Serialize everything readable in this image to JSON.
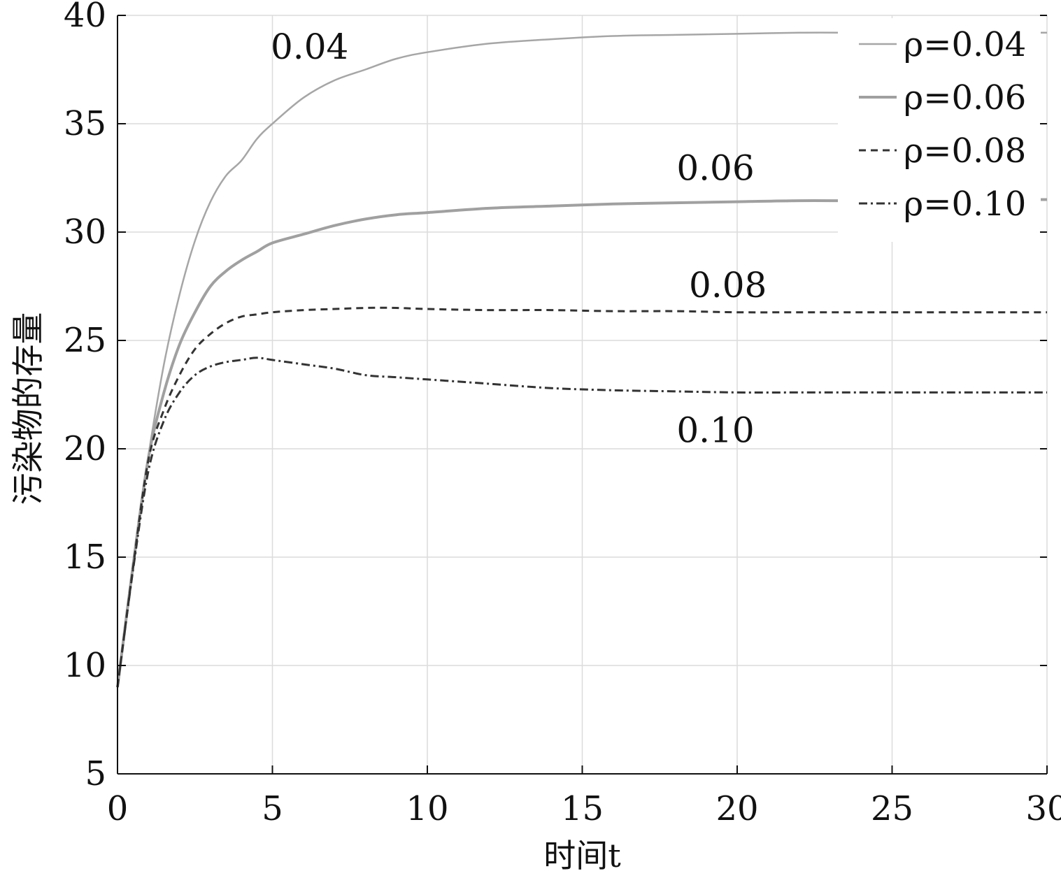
{
  "chart_data": {
    "type": "line",
    "title": "",
    "xlabel": "时间t",
    "ylabel": "污染物的存量",
    "xlim": [
      0,
      30
    ],
    "ylim": [
      5,
      40
    ],
    "xticks": [
      0,
      5,
      10,
      15,
      20,
      25,
      30
    ],
    "yticks": [
      5,
      10,
      15,
      20,
      25,
      30,
      35,
      40
    ],
    "grid": true,
    "legend_position": "top-right",
    "x": [
      0,
      0.5,
      1,
      1.5,
      2,
      2.5,
      3,
      3.5,
      4,
      4.5,
      5,
      6,
      7,
      8,
      9,
      10,
      12,
      14,
      16,
      18,
      20,
      22,
      24,
      26,
      28,
      30
    ],
    "series": [
      {
        "name": "ρ=0.04",
        "annotation": "0.04",
        "style": "solid-thin",
        "color": "#a6a6a6",
        "values": [
          9.0,
          14.7,
          19.7,
          23.9,
          27.1,
          29.6,
          31.4,
          32.6,
          33.3,
          34.3,
          35.0,
          36.2,
          37.0,
          37.5,
          38.0,
          38.3,
          38.7,
          38.9,
          39.05,
          39.1,
          39.15,
          39.2,
          39.2,
          39.2,
          39.2,
          39.2
        ]
      },
      {
        "name": "ρ=0.06",
        "annotation": "0.06",
        "style": "solid-thick",
        "color": "#a0a0a0",
        "values": [
          9.0,
          14.6,
          19.6,
          22.6,
          24.8,
          26.3,
          27.5,
          28.2,
          28.7,
          29.1,
          29.5,
          29.9,
          30.3,
          30.6,
          30.8,
          30.9,
          31.1,
          31.2,
          31.3,
          31.35,
          31.4,
          31.45,
          31.45,
          31.5,
          31.5,
          31.5
        ]
      },
      {
        "name": "ρ=0.08",
        "annotation": "0.08",
        "style": "dashed",
        "color": "#333333",
        "values": [
          9.0,
          14.5,
          19.5,
          21.8,
          23.4,
          24.6,
          25.3,
          25.8,
          26.1,
          26.2,
          26.3,
          26.4,
          26.45,
          26.5,
          26.5,
          26.45,
          26.4,
          26.4,
          26.35,
          26.35,
          26.3,
          26.3,
          26.3,
          26.3,
          26.3,
          26.3
        ]
      },
      {
        "name": "ρ=0.10",
        "annotation": "0.10",
        "style": "dashdot",
        "color": "#333333",
        "values": [
          9.0,
          14.4,
          19.0,
          21.3,
          22.6,
          23.4,
          23.8,
          24.0,
          24.1,
          24.2,
          24.1,
          23.9,
          23.7,
          23.4,
          23.3,
          23.2,
          23.0,
          22.8,
          22.7,
          22.65,
          22.6,
          22.6,
          22.6,
          22.6,
          22.6,
          22.6
        ]
      }
    ]
  }
}
